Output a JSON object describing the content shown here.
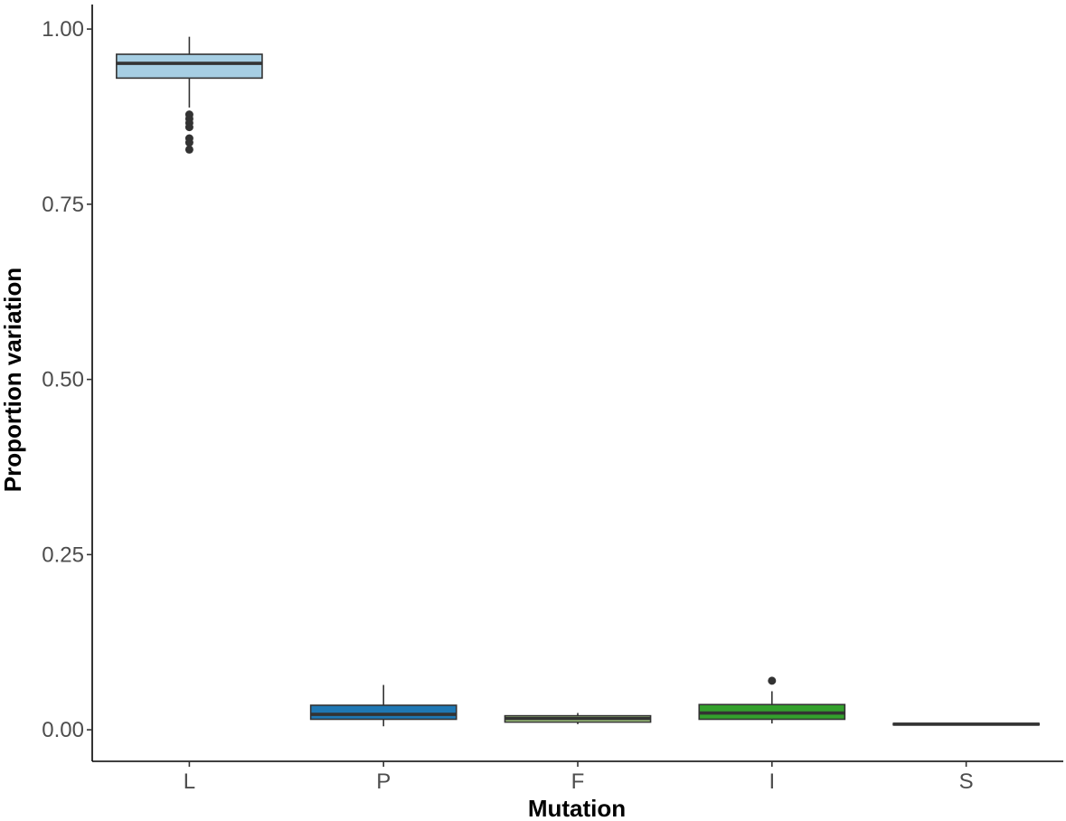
{
  "chart_data": {
    "type": "box",
    "title": "",
    "xlabel": "Mutation",
    "ylabel": "Proportion variation",
    "ylim": [
      -0.045,
      1.035
    ],
    "yticks": [
      0.0,
      0.25,
      0.5,
      0.75,
      1.0
    ],
    "ytick_labels": [
      "0.00",
      "0.25",
      "0.50",
      "0.75",
      "1.00"
    ],
    "grid": false,
    "legend": "none",
    "categories": [
      "L",
      "P",
      "F",
      "I",
      "S"
    ],
    "boxes": [
      {
        "category": "L",
        "whisker_low": 0.888,
        "q1": 0.93,
        "median": 0.951,
        "q3": 0.964,
        "whisker_high": 0.989,
        "outliers": [
          0.878,
          0.872,
          0.866,
          0.86,
          0.844,
          0.838,
          0.828
        ],
        "fill": "#a6cee3"
      },
      {
        "category": "P",
        "whisker_low": 0.005,
        "q1": 0.015,
        "median": 0.022,
        "q3": 0.035,
        "whisker_high": 0.064,
        "outliers": [],
        "fill": "#1f78b4"
      },
      {
        "category": "F",
        "whisker_low": 0.008,
        "q1": 0.011,
        "median": 0.016,
        "q3": 0.02,
        "whisker_high": 0.024,
        "outliers": [],
        "fill": "#b2df8a"
      },
      {
        "category": "I",
        "whisker_low": 0.009,
        "q1": 0.015,
        "median": 0.024,
        "q3": 0.036,
        "whisker_high": 0.055,
        "outliers": [
          0.07
        ],
        "fill": "#33a02c"
      },
      {
        "category": "S",
        "whisker_low": 0.007,
        "q1": 0.007,
        "median": 0.008,
        "q3": 0.009,
        "whisker_high": 0.009,
        "outliers": [],
        "fill": "#e31a1c"
      }
    ],
    "colors": {
      "outline": "#333333",
      "axis": "#000000",
      "tick_label": "#4d4d4d"
    }
  }
}
